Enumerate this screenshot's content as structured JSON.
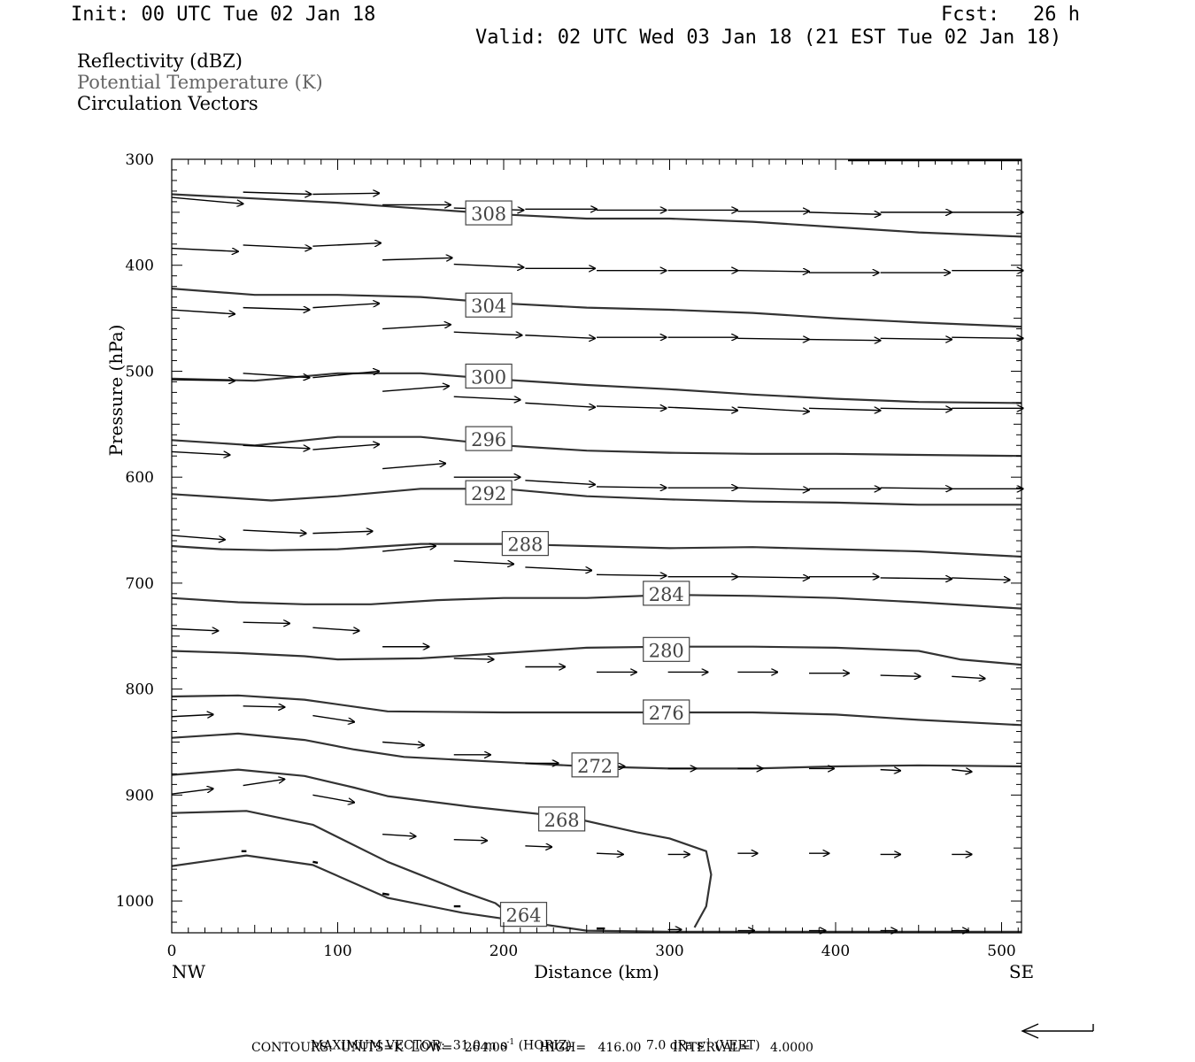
{
  "header": {
    "init": "Init: 00 UTC Tue 02 Jan 18",
    "fcst_label": "Fcst:",
    "fcst_value": "26 h",
    "valid": "Valid: 02 UTC Wed 03 Jan 18 (21 EST Tue 02 Jan 18)"
  },
  "legend": {
    "items": [
      {
        "label": "Reflectivity (dBZ)",
        "color": "#000000"
      },
      {
        "label": "Potential Temperature (K)",
        "color": "#666666"
      },
      {
        "label": "Circulation Vectors",
        "color": "#000000"
      }
    ]
  },
  "footer": {
    "max_vector": "MAXIMUM VECTOR:  31.0 m s",
    "max_vector_horiz": "(HORIZ)",
    "max_vector_vert": "7.0 dPa s",
    "max_vector_vert_tag": "(VERT)",
    "exp": "-1",
    "contours": "CONTOURS:  UNITS=K  LOW=   264.00        HIGH=   416.00        INTERVAL=     4.0000"
  },
  "chart_data": {
    "type": "line",
    "title": "",
    "xlabel": "Distance (km)",
    "ylabel": "Pressure (hPa)",
    "xlim": [
      0,
      512
    ],
    "ylim": [
      300,
      1030
    ],
    "y_inverted": true,
    "x_ticks": [
      0,
      100,
      200,
      300,
      400,
      500
    ],
    "x_tick_labels": [
      "0",
      "100",
      "200",
      "300",
      "400",
      "500"
    ],
    "y_ticks": [
      300,
      400,
      500,
      600,
      700,
      800,
      900,
      1000
    ],
    "y_tick_labels": [
      "300",
      "400",
      "500",
      "600",
      "700",
      "800",
      "900",
      "1000"
    ],
    "x_end_labels": {
      "left": "NW",
      "right": "SE"
    },
    "grid": false,
    "contour_color": "#333333",
    "vector_color": "#000000",
    "series": [
      {
        "name": "308",
        "label_at": [
          191,
          351
        ],
        "x": [
          0,
          100,
          200,
          250,
          300,
          350,
          400,
          450,
          512
        ],
        "y": [
          333,
          341,
          352,
          356,
          356,
          359,
          364,
          369,
          373
        ]
      },
      {
        "name": "304",
        "label_at": [
          191,
          438
        ],
        "x": [
          0,
          50,
          100,
          150,
          200,
          250,
          300,
          350,
          400,
          450,
          512
        ],
        "y": [
          422,
          428,
          428,
          430,
          436,
          440,
          442,
          445,
          450,
          454,
          458
        ]
      },
      {
        "name": "300",
        "label_at": [
          191,
          505
        ],
        "x": [
          0,
          50,
          100,
          150,
          200,
          250,
          300,
          350,
          400,
          450,
          512
        ],
        "y": [
          507,
          509,
          502,
          502,
          508,
          513,
          517,
          522,
          526,
          529,
          530
        ]
      },
      {
        "name": "296",
        "label_at": [
          191,
          564
        ],
        "x": [
          0,
          50,
          100,
          150,
          200,
          250,
          300,
          350,
          400,
          450,
          512
        ],
        "y": [
          565,
          570,
          562,
          562,
          570,
          575,
          577,
          578,
          578,
          579,
          580
        ]
      },
      {
        "name": "292",
        "label_at": [
          191,
          615
        ],
        "x": [
          0,
          30,
          60,
          100,
          150,
          200,
          250,
          300,
          350,
          400,
          450,
          512
        ],
        "y": [
          616,
          619,
          622,
          618,
          611,
          611,
          618,
          621,
          623,
          624,
          626,
          626
        ]
      },
      {
        "name": "288",
        "label_at": [
          213,
          663
        ],
        "x": [
          0,
          30,
          60,
          100,
          150,
          200,
          250,
          300,
          350,
          400,
          450,
          512
        ],
        "y": [
          665,
          668,
          669,
          668,
          663,
          663,
          665,
          667,
          666,
          668,
          670,
          675
        ]
      },
      {
        "name": "284",
        "label_at": [
          298,
          710
        ],
        "x": [
          0,
          40,
          80,
          120,
          160,
          200,
          250,
          300,
          350,
          400,
          450,
          512
        ],
        "y": [
          714,
          718,
          720,
          720,
          716,
          714,
          714,
          711,
          712,
          714,
          718,
          724
        ]
      },
      {
        "name": "280",
        "label_at": [
          298,
          763
        ],
        "x": [
          0,
          40,
          80,
          100,
          150,
          200,
          250,
          300,
          350,
          400,
          450,
          475,
          512
        ],
        "y": [
          764,
          766,
          769,
          772,
          771,
          766,
          761,
          760,
          760,
          761,
          764,
          772,
          777
        ]
      },
      {
        "name": "276",
        "label_at": [
          298,
          822
        ],
        "x": [
          0,
          40,
          80,
          130,
          200,
          250,
          300,
          350,
          400,
          450,
          512
        ],
        "y": [
          807,
          806,
          810,
          821,
          822,
          822,
          822,
          822,
          824,
          829,
          834
        ]
      },
      {
        "name": "272",
        "label_at": [
          255,
          872
        ],
        "x": [
          0,
          40,
          80,
          110,
          140,
          200,
          250,
          300,
          350,
          400,
          450,
          512
        ],
        "y": [
          846,
          842,
          848,
          857,
          864,
          869,
          873,
          875,
          875,
          873,
          872,
          873
        ]
      },
      {
        "name": "268",
        "label_at": [
          235,
          923
        ],
        "x": [
          0,
          40,
          80,
          110,
          130,
          180,
          210,
          240,
          260,
          280,
          300,
          322,
          325,
          322,
          315
        ],
        "y": [
          881,
          876,
          882,
          893,
          901,
          911,
          916,
          921,
          928,
          935,
          941,
          953,
          975,
          1005,
          1025
        ]
      },
      {
        "name": "",
        "x": [
          0,
          45,
          85,
          130,
          175,
          195,
          200
        ],
        "y": [
          917,
          915,
          928,
          963,
          991,
          1002,
          1008
        ]
      },
      {
        "name": "264",
        "label_at": [
          212,
          1013
        ],
        "x": [
          0,
          45,
          85,
          130,
          175,
          210,
          250,
          300,
          350,
          512
        ],
        "y": [
          967,
          957,
          966,
          997,
          1011,
          1019,
          1028,
          1029,
          1029,
          1029
        ]
      }
    ],
    "vectors": [
      {
        "x": 0,
        "y": 336,
        "dx": 43,
        "dy": 6
      },
      {
        "x": 43,
        "y": 331,
        "dx": 41,
        "dy": 2
      },
      {
        "x": 85,
        "y": 333,
        "dx": 40,
        "dy": -1
      },
      {
        "x": 127,
        "y": 343,
        "dx": 41,
        "dy": 0
      },
      {
        "x": 170,
        "y": 346,
        "dx": 42,
        "dy": 2
      },
      {
        "x": 213,
        "y": 347,
        "dx": 43,
        "dy": 0
      },
      {
        "x": 256,
        "y": 348,
        "dx": 42,
        "dy": 0
      },
      {
        "x": 299,
        "y": 348,
        "dx": 42,
        "dy": 0
      },
      {
        "x": 341,
        "y": 349,
        "dx": 43,
        "dy": 0
      },
      {
        "x": 384,
        "y": 350,
        "dx": 43,
        "dy": 2
      },
      {
        "x": 427,
        "y": 350,
        "dx": 43,
        "dy": 0
      },
      {
        "x": 470,
        "y": 350,
        "dx": 43,
        "dy": 0
      },
      {
        "x": 0,
        "y": 384,
        "dx": 40,
        "dy": 3
      },
      {
        "x": 43,
        "y": 381,
        "dx": 41,
        "dy": 3
      },
      {
        "x": 85,
        "y": 382,
        "dx": 41,
        "dy": -3
      },
      {
        "x": 127,
        "y": 395,
        "dx": 42,
        "dy": -2
      },
      {
        "x": 170,
        "y": 399,
        "dx": 42,
        "dy": 3
      },
      {
        "x": 213,
        "y": 403,
        "dx": 42,
        "dy": 0
      },
      {
        "x": 256,
        "y": 405,
        "dx": 42,
        "dy": 0
      },
      {
        "x": 299,
        "y": 405,
        "dx": 42,
        "dy": 0
      },
      {
        "x": 341,
        "y": 405,
        "dx": 43,
        "dy": 1
      },
      {
        "x": 384,
        "y": 407,
        "dx": 42,
        "dy": 0
      },
      {
        "x": 427,
        "y": 407,
        "dx": 42,
        "dy": 0
      },
      {
        "x": 470,
        "y": 405,
        "dx": 43,
        "dy": 0
      },
      {
        "x": 0,
        "y": 442,
        "dx": 38,
        "dy": 4
      },
      {
        "x": 43,
        "y": 440,
        "dx": 40,
        "dy": 2
      },
      {
        "x": 85,
        "y": 440,
        "dx": 40,
        "dy": -4
      },
      {
        "x": 127,
        "y": 460,
        "dx": 41,
        "dy": -4
      },
      {
        "x": 170,
        "y": 463,
        "dx": 41,
        "dy": 3
      },
      {
        "x": 213,
        "y": 466,
        "dx": 42,
        "dy": 3
      },
      {
        "x": 256,
        "y": 468,
        "dx": 42,
        "dy": 0
      },
      {
        "x": 299,
        "y": 468,
        "dx": 42,
        "dy": 0
      },
      {
        "x": 341,
        "y": 469,
        "dx": 43,
        "dy": 1
      },
      {
        "x": 384,
        "y": 470,
        "dx": 43,
        "dy": 1
      },
      {
        "x": 427,
        "y": 469,
        "dx": 43,
        "dy": 1
      },
      {
        "x": 470,
        "y": 468,
        "dx": 43,
        "dy": 1
      },
      {
        "x": 0,
        "y": 508,
        "dx": 38,
        "dy": 1
      },
      {
        "x": 43,
        "y": 502,
        "dx": 40,
        "dy": 4
      },
      {
        "x": 85,
        "y": 506,
        "dx": 40,
        "dy": -6
      },
      {
        "x": 127,
        "y": 519,
        "dx": 40,
        "dy": -5
      },
      {
        "x": 170,
        "y": 524,
        "dx": 40,
        "dy": 3
      },
      {
        "x": 213,
        "y": 530,
        "dx": 42,
        "dy": 4
      },
      {
        "x": 256,
        "y": 533,
        "dx": 42,
        "dy": 2
      },
      {
        "x": 299,
        "y": 534,
        "dx": 42,
        "dy": 3
      },
      {
        "x": 341,
        "y": 534,
        "dx": 43,
        "dy": 4
      },
      {
        "x": 384,
        "y": 535,
        "dx": 43,
        "dy": 2
      },
      {
        "x": 427,
        "y": 535,
        "dx": 43,
        "dy": 1
      },
      {
        "x": 470,
        "y": 535,
        "dx": 43,
        "dy": 0
      },
      {
        "x": 0,
        "y": 576,
        "dx": 35,
        "dy": 3
      },
      {
        "x": 43,
        "y": 570,
        "dx": 40,
        "dy": 3
      },
      {
        "x": 85,
        "y": 574,
        "dx": 40,
        "dy": -5
      },
      {
        "x": 127,
        "y": 592,
        "dx": 38,
        "dy": -5
      },
      {
        "x": 170,
        "y": 600,
        "dx": 40,
        "dy": 0
      },
      {
        "x": 213,
        "y": 603,
        "dx": 42,
        "dy": 4
      },
      {
        "x": 256,
        "y": 609,
        "dx": 42,
        "dy": 1
      },
      {
        "x": 299,
        "y": 610,
        "dx": 42,
        "dy": 0
      },
      {
        "x": 341,
        "y": 610,
        "dx": 43,
        "dy": 2
      },
      {
        "x": 384,
        "y": 611,
        "dx": 43,
        "dy": 0
      },
      {
        "x": 427,
        "y": 610,
        "dx": 43,
        "dy": 1
      },
      {
        "x": 470,
        "y": 611,
        "dx": 43,
        "dy": 0
      },
      {
        "x": 0,
        "y": 655,
        "dx": 32,
        "dy": 4
      },
      {
        "x": 43,
        "y": 650,
        "dx": 38,
        "dy": 3
      },
      {
        "x": 85,
        "y": 653,
        "dx": 36,
        "dy": -2
      },
      {
        "x": 127,
        "y": 670,
        "dx": 32,
        "dy": -5
      },
      {
        "x": 170,
        "y": 679,
        "dx": 36,
        "dy": 3
      },
      {
        "x": 213,
        "y": 685,
        "dx": 40,
        "dy": 3
      },
      {
        "x": 256,
        "y": 692,
        "dx": 42,
        "dy": 1
      },
      {
        "x": 299,
        "y": 694,
        "dx": 42,
        "dy": 0
      },
      {
        "x": 341,
        "y": 694,
        "dx": 43,
        "dy": 1
      },
      {
        "x": 384,
        "y": 694,
        "dx": 42,
        "dy": 0
      },
      {
        "x": 427,
        "y": 695,
        "dx": 43,
        "dy": 1
      },
      {
        "x": 470,
        "y": 695,
        "dx": 35,
        "dy": 2
      },
      {
        "x": 0,
        "y": 743,
        "dx": 28,
        "dy": 2
      },
      {
        "x": 43,
        "y": 737,
        "dx": 28,
        "dy": 1
      },
      {
        "x": 85,
        "y": 742,
        "dx": 28,
        "dy": 3
      },
      {
        "x": 127,
        "y": 760,
        "dx": 28,
        "dy": 0
      },
      {
        "x": 170,
        "y": 771,
        "dx": 24,
        "dy": 1
      },
      {
        "x": 213,
        "y": 779,
        "dx": 24,
        "dy": 0
      },
      {
        "x": 256,
        "y": 784,
        "dx": 24,
        "dy": 0
      },
      {
        "x": 299,
        "y": 784,
        "dx": 24,
        "dy": 0
      },
      {
        "x": 341,
        "y": 784,
        "dx": 24,
        "dy": 0
      },
      {
        "x": 384,
        "y": 785,
        "dx": 24,
        "dy": 0
      },
      {
        "x": 427,
        "y": 787,
        "dx": 24,
        "dy": 1
      },
      {
        "x": 470,
        "y": 788,
        "dx": 20,
        "dy": 2
      },
      {
        "x": 0,
        "y": 826,
        "dx": 25,
        "dy": -2
      },
      {
        "x": 43,
        "y": 816,
        "dx": 25,
        "dy": 1
      },
      {
        "x": 85,
        "y": 825,
        "dx": 25,
        "dy": 6
      },
      {
        "x": 127,
        "y": 850,
        "dx": 25,
        "dy": 3
      },
      {
        "x": 170,
        "y": 862,
        "dx": 22,
        "dy": 0
      },
      {
        "x": 213,
        "y": 870,
        "dx": 20,
        "dy": 0
      },
      {
        "x": 256,
        "y": 873,
        "dx": 17,
        "dy": 0
      },
      {
        "x": 299,
        "y": 875,
        "dx": 17,
        "dy": 0
      },
      {
        "x": 341,
        "y": 875,
        "dx": 15,
        "dy": 0
      },
      {
        "x": 384,
        "y": 875,
        "dx": 15,
        "dy": 0
      },
      {
        "x": 427,
        "y": 876,
        "dx": 12,
        "dy": 1
      },
      {
        "x": 470,
        "y": 876,
        "dx": 12,
        "dy": 2
      },
      {
        "x": 0,
        "y": 899,
        "dx": 25,
        "dy": -5
      },
      {
        "x": 43,
        "y": 891,
        "dx": 25,
        "dy": -6
      },
      {
        "x": 85,
        "y": 900,
        "dx": 25,
        "dy": 7
      },
      {
        "x": 127,
        "y": 937,
        "dx": 20,
        "dy": 2
      },
      {
        "x": 170,
        "y": 942,
        "dx": 20,
        "dy": 1
      },
      {
        "x": 213,
        "y": 948,
        "dx": 16,
        "dy": 1
      },
      {
        "x": 256,
        "y": 955,
        "dx": 16,
        "dy": 1
      },
      {
        "x": 299,
        "y": 956,
        "dx": 13,
        "dy": 0
      },
      {
        "x": 341,
        "y": 955,
        "dx": 12,
        "dy": 0
      },
      {
        "x": 384,
        "y": 955,
        "dx": 12,
        "dy": 0
      },
      {
        "x": 427,
        "y": 956,
        "dx": 12,
        "dy": 0
      },
      {
        "x": 470,
        "y": 956,
        "dx": 12,
        "dy": 0
      },
      {
        "x": 42,
        "y": 953,
        "dx": 3,
        "dy": 0
      },
      {
        "x": 85,
        "y": 963,
        "dx": 3,
        "dy": 1
      },
      {
        "x": 127,
        "y": 993,
        "dx": 4,
        "dy": 1
      },
      {
        "x": 170,
        "y": 1005,
        "dx": 4,
        "dy": 0
      },
      {
        "x": 256,
        "y": 1026,
        "dx": 5,
        "dy": 0
      },
      {
        "x": 299,
        "y": 1027,
        "dx": 8,
        "dy": 0
      },
      {
        "x": 341,
        "y": 1028,
        "dx": 10,
        "dy": 0
      },
      {
        "x": 384,
        "y": 1028,
        "dx": 10,
        "dy": 0
      },
      {
        "x": 427,
        "y": 1028,
        "dx": 10,
        "dy": 0
      },
      {
        "x": 470,
        "y": 1028,
        "dx": 10,
        "dy": 0
      }
    ]
  }
}
